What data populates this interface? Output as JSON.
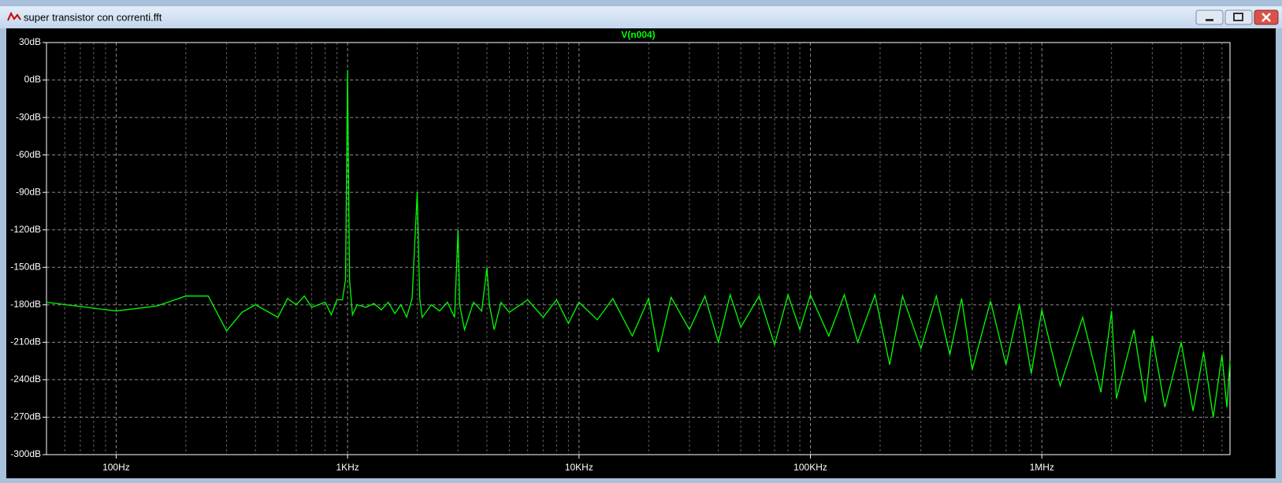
{
  "window": {
    "title": "super transistor con correnti.fft"
  },
  "chart_data": {
    "type": "line",
    "xscale": "log",
    "grid": true,
    "minor_grid": true,
    "series": [
      {
        "name": "V(n004)",
        "color": "#00ff00",
        "values": [
          -178,
          -185,
          -181,
          -173,
          -173,
          -201,
          -186,
          -180,
          -190,
          -175,
          -180,
          -173,
          -182,
          -178,
          -188,
          -176,
          -176,
          -160,
          8,
          -160,
          -188,
          -180,
          -182,
          -179,
          -184,
          -178,
          -187,
          -180,
          -190,
          -175,
          -90,
          -175,
          -190,
          -180,
          -185,
          -178,
          -190,
          -120,
          -180,
          -200,
          -178,
          -185,
          -150,
          -180,
          -200,
          -178,
          -186,
          -176,
          -190,
          -176,
          -195,
          -178,
          -192,
          -175,
          -205,
          -175,
          -218,
          -174,
          -200,
          -173,
          -210,
          -172,
          -198,
          -173,
          -212,
          -172,
          -200,
          -172,
          -205,
          -172,
          -210,
          -172,
          -228,
          -173,
          -215,
          -173,
          -220,
          -175,
          -232,
          -177,
          -228,
          -180,
          -235,
          -184,
          -245,
          -190,
          -250,
          -185,
          -255,
          -200,
          -258,
          -205,
          -262,
          -210,
          -265,
          -218,
          -270,
          -220,
          -262,
          -225
        ]
      }
    ],
    "x": [
      50,
      100,
      150,
      200,
      250,
      300,
      350,
      400,
      500,
      550,
      600,
      650,
      700,
      800,
      850,
      900,
      950,
      980,
      1000,
      1020,
      1050,
      1100,
      1200,
      1300,
      1400,
      1500,
      1600,
      1700,
      1800,
      1900,
      2000,
      2050,
      2100,
      2300,
      2500,
      2700,
      2900,
      3000,
      3050,
      3200,
      3500,
      3800,
      4000,
      4100,
      4300,
      4600,
      5000,
      6000,
      7000,
      8000,
      9000,
      10000,
      12000,
      14000,
      17000,
      20000,
      22000,
      25000,
      30000,
      35000,
      40000,
      45000,
      50000,
      60000,
      70000,
      80000,
      90000,
      100000,
      120000,
      140000,
      160000,
      190000,
      220000,
      250000,
      300000,
      350000,
      400000,
      450000,
      500000,
      600000,
      700000,
      800000,
      900000,
      1000000,
      1200000,
      1500000,
      1800000,
      2000000,
      2100000,
      2500000,
      2800000,
      3000000,
      3400000,
      4000000,
      4500000,
      5000000,
      5500000,
      6000000,
      6300000,
      6500000
    ],
    "xlim": [
      50,
      6500000
    ],
    "xticks": [
      {
        "value": 100,
        "label": "100Hz"
      },
      {
        "value": 1000,
        "label": "1KHz"
      },
      {
        "value": 10000,
        "label": "10KHz"
      },
      {
        "value": 100000,
        "label": "100KHz"
      },
      {
        "value": 1000000,
        "label": "1MHz"
      }
    ],
    "ylim": [
      -300,
      30
    ],
    "yticks": [
      {
        "value": 30,
        "label": "30dB"
      },
      {
        "value": 0,
        "label": "0dB"
      },
      {
        "value": -30,
        "label": "-30dB"
      },
      {
        "value": -60,
        "label": "-60dB"
      },
      {
        "value": -90,
        "label": "-90dB"
      },
      {
        "value": -120,
        "label": "-120dB"
      },
      {
        "value": -150,
        "label": "-150dB"
      },
      {
        "value": -180,
        "label": "-180dB"
      },
      {
        "value": -210,
        "label": "-210dB"
      },
      {
        "value": -240,
        "label": "-240dB"
      },
      {
        "value": -270,
        "label": "-270dB"
      },
      {
        "value": -300,
        "label": "-300dB"
      }
    ]
  }
}
